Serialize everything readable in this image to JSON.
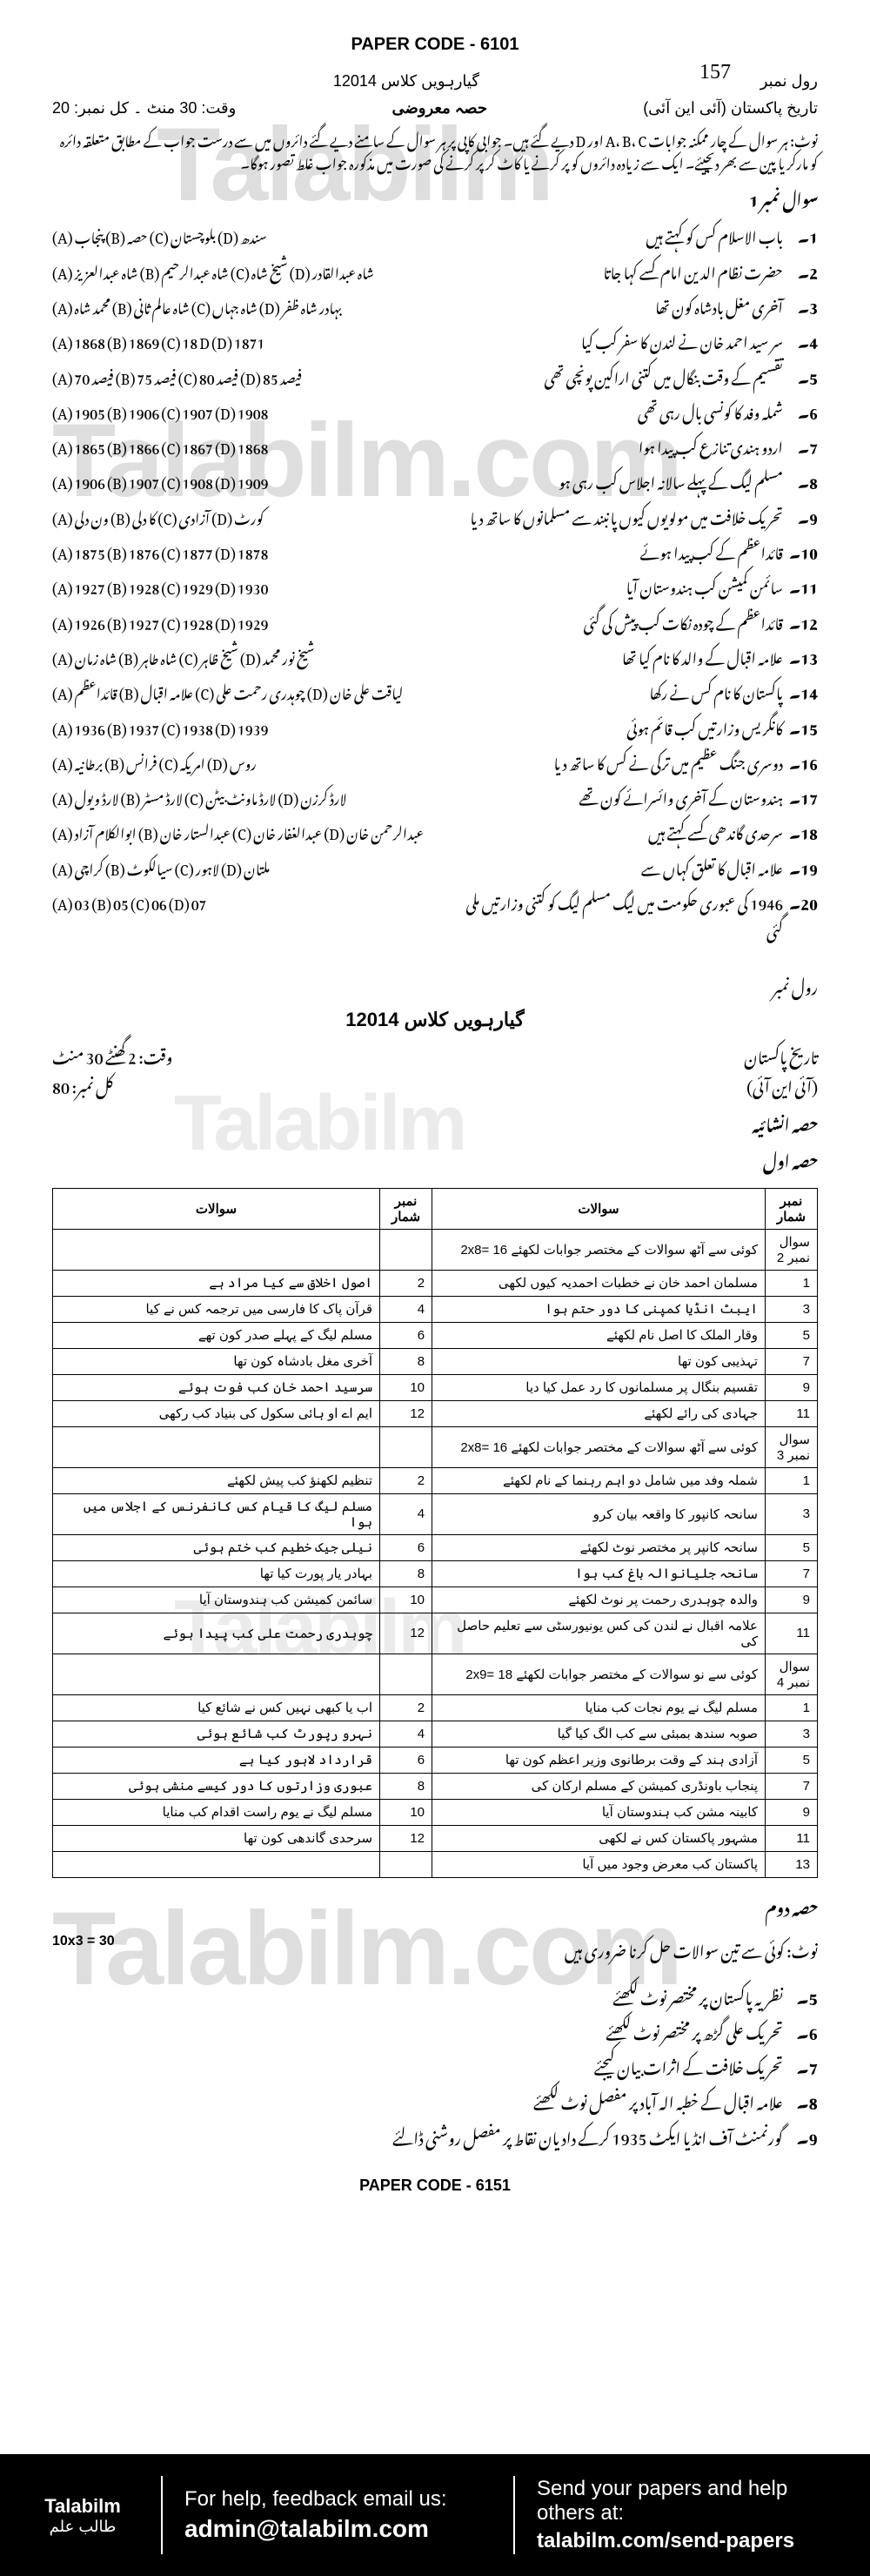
{
  "page_number": "157",
  "paper_code_top": "PAPER CODE - 6101",
  "exam_year": "گیارہویں کلاس 12014",
  "subject": "تاریخ پاکستان (آئی این آئی)",
  "roll_label": "رول نمبر",
  "time_marks_top": "وقت: 30 منٹ ۔ کل نمبر: 20",
  "section_obj": "حصہ معروضی",
  "note_text": "نوٹ: ہر سوال کے چار ممکنہ جوابات A، B، C اور D دیے گئے ہیں۔ جوابی کاپی پر ہر سوال کے سامنے دیے گئے دائروں میں سے درست جواب کے مطابق متعلقہ دائرہ کو مارکر یا پین سے بھر دیجیئے۔ ایک سے زیادہ دائروں کو پر کرنے یا کاٹ کر پر کرنے کی صورت میں مذکورہ جواب غلط تصور ہوگا۔",
  "q_label": "سوال نمبر 1",
  "mcqs": [
    {
      "n": "1",
      "q": "باب الاسلام کس کو کہتے ہیں",
      "o": "(A) پنجاب (B) حصہ (C) بلوچستان (D) سندھ"
    },
    {
      "n": "2",
      "q": "حضرت نظام الدین امام کسے کہا جاتا",
      "o": "(A) شاہ عبدالعزیز (B) شاہ عبدالرحیم (C) شیخ شاہ (D) شاہ عبدالقادر"
    },
    {
      "n": "3",
      "q": "آخری مغل بادشاہ کون تھا",
      "o": "(A) محمد شاہ (B) شاہ عالم ثانی (C) شاہ جہاں (D) بہادر شاہ ظفر"
    },
    {
      "n": "4",
      "q": "سر سید احمد خان نے لندن کا سفر کب کیا",
      "o": "(A) 1868 (B) 1869 (C) 18 D (D) 1871"
    },
    {
      "n": "5",
      "q": "تقسیم کے وقت بنگال میں کتنی اراکین پونچی تھی",
      "o": "(A) 70 فیصد (B) 75 فیصد (C) 80 فیصد (D) 85 فیصد"
    },
    {
      "n": "6",
      "q": "شملہ وفد کا کونسی بال رہی تھی",
      "o": "(A) 1905 (B) 1906 (C) 1907 (D) 1908"
    },
    {
      "n": "7",
      "q": "اردو ہندی تنازع کب پیدا ہوا",
      "o": "(A) 1865 (B) 1866 (C) 1867 (D) 1868"
    },
    {
      "n": "8",
      "q": "مسلم لیگ کے پہلے سالانہ اجلاس کب رہی ہو",
      "o": "(A) 1906 (B) 1907 (C) 1908 (D) 1909"
    },
    {
      "n": "9",
      "q": "تحریک خلافت میں مولویوں کیوں پانبند سے مسلمانوں کا ساتھ دیا",
      "o": "(A) ون دلی (B) کا دلی (C) آزادی (D) کورٹ"
    },
    {
      "n": "10",
      "q": "قائداعظم کے کب پیدا ہوئے",
      "o": "(A) 1875 (B) 1876 (C) 1877 (D) 1878"
    },
    {
      "n": "11",
      "q": "سائمن کمیشن کب ہندوستان آیا",
      "o": "(A) 1927 (B) 1928 (C) 1929 (D) 1930"
    },
    {
      "n": "12",
      "q": "قائداعظم کے چودہ نکات کب پیش کی گئی",
      "o": "(A) 1926 (B) 1927 (C) 1928 (D) 1929"
    },
    {
      "n": "13",
      "q": "علامہ اقبال کے والد کا نام کیا تھا",
      "o": "(A) شاہ زمان (B) شاہ طاہر (C) شیخ ظاہر (D) شیخ نور محمد"
    },
    {
      "n": "14",
      "q": "پاکستان کا نام کس نے رکھا",
      "o": "(A) قائداعظم (B) علامہ اقبال (C) چوہدری رحمت علی (D) لیاقت علی خان"
    },
    {
      "n": "15",
      "q": "کانگریس وزارتیں کب قائم ہوئی",
      "o": "(A) 1936 (B) 1937 (C) 1938 (D) 1939"
    },
    {
      "n": "16",
      "q": "دوسری جنگ عظیم میں ترکی نے کس کا ساتھ دیا",
      "o": "(A) برطانیہ (B) فرانس (C) امریکہ (D) روس"
    },
    {
      "n": "17",
      "q": "ہندوستان کے آخری وائسرائے کون تھے",
      "o": "(A) لارڈ ویول (B) لارڈ مسٹر (C) لارڈ ماونٹ بیٹن (D) لارڈ کرزن"
    },
    {
      "n": "18",
      "q": "سرحدی گاندھی کسے کہتے ہیں",
      "o": "(A) ابوالکلام آزاد (B) عبدالستار خان (C) عبدالغفار خان (D) عبدالرحمن خان"
    },
    {
      "n": "19",
      "q": "علامہ اقبال کا تعلق کہاں سے",
      "o": "(A) کراچی (B) سیالکوٹ (C) لاہور (D) ملتان"
    },
    {
      "n": "20",
      "q": "1946 کی عبوری حکومت میں لیگ مسلم لیگ کو کتنی وزارتیں ملی گئی",
      "o": "(A) 03 (B) 05 (C) 06 (D) 07"
    }
  ],
  "part2_header": "گیارہویں کلاس 12014",
  "part2_subject": "تاریخ پاکستان",
  "part2_annual": "(آئی این آئی)",
  "part2_time": "وقت: 2 گھنٹے 30 منٹ",
  "part2_marks": "کل نمبر: 80",
  "section_subj": "حصہ انشائیہ",
  "hissa_awal": "حصہ اول",
  "table_headers": [
    "نمبر شمار",
    "سوالات",
    "نمبر شمار",
    "سوالات"
  ],
  "table_rows": [
    {
      "n1": "سوال نمبر 2",
      "q1": "کوئی سے آٹھ سوالات کے مختصر جوابات لکھئے 16 =2x8",
      "n2": "",
      "q2": ""
    },
    {
      "n1": "1",
      "q1": "مسلمان احمد خان نے خطبات احمدیہ کیوں لکھی",
      "n2": "2",
      "q2": "اصول اخلاق سے کیا مراد ہے"
    },
    {
      "n1": "3",
      "q1": "ایبٹ انڈیا کمپنی کا دور حتم ہوا",
      "n2": "4",
      "q2": "قرآن پاک کا فارسی میں ترجمہ کس نے کیا"
    },
    {
      "n1": "5",
      "q1": "وقار الملک کا اصل نام لکھئے",
      "n2": "6",
      "q2": "مسلم لیگ کے پہلے صدر کون تھے"
    },
    {
      "n1": "7",
      "q1": "تہذیبی کون تھا",
      "n2": "8",
      "q2": "آخری مغل بادشاہ کون تھا"
    },
    {
      "n1": "9",
      "q1": "تقسیم بنگال پر مسلمانوں کا رد عمل کیا دیا",
      "n2": "10",
      "q2": "سرسید احمد خان کب فوت ہوئے"
    },
    {
      "n1": "11",
      "q1": "جہادی کی رائے لکھئے",
      "n2": "12",
      "q2": "ایم اے او ہائی سکول کی بنیاد کب رکھی"
    },
    {
      "n1": "سوال نمبر 3",
      "q1": "کوئی سے آٹھ سوالات کے مختصر جوابات لکھئے 16 =2x8",
      "n2": "",
      "q2": ""
    },
    {
      "n1": "1",
      "q1": "شملہ وفد میں شامل دو اہم رہنما کے نام لکھئے",
      "n2": "2",
      "q2": "تنظیم لکھنؤ کب پیش لکھئے"
    },
    {
      "n1": "3",
      "q1": "سانحہ کانپور کا واقعہ بیان کرو",
      "n2": "4",
      "q2": "مسلم لیگ کا قیام کس کانفرنس کے اجلاس میں ہوا"
    },
    {
      "n1": "5",
      "q1": "سانحہ کانپر پر مختصر نوٹ لکھئے",
      "n2": "6",
      "q2": "نیلی جیک خطیم کب ختم ہوئی"
    },
    {
      "n1": "7",
      "q1": "سانحہ جلیانوالہ باغ کب ہوا",
      "n2": "8",
      "q2": "بہادر یار پورت کیا تھا"
    },
    {
      "n1": "9",
      "q1": "والدہ چوہدری رحمت پر نوٹ لکھئے",
      "n2": "10",
      "q2": "سائمن کمیشن کب ہندوستان آیا"
    },
    {
      "n1": "11",
      "q1": "علامہ اقبال نے لندن کی کس یونیورسٹی سے تعلیم حاصل کی",
      "n2": "12",
      "q2": "چوہدری رحمت علی کب پیدا ہوئے"
    },
    {
      "n1": "سوال نمبر 4",
      "q1": "کوئی سے نو سوالات کے مختصر جوابات لکھئے 18 =2x9",
      "n2": "",
      "q2": ""
    },
    {
      "n1": "1",
      "q1": "مسلم لیگ نے یوم نجات کب منایا",
      "n2": "2",
      "q2": "اب یا کبھی نہیں کس نے شائع کیا"
    },
    {
      "n1": "3",
      "q1": "صوبہ سندھ بمبئی سے کب الگ کیا گیا",
      "n2": "4",
      "q2": "نہرو رپورٹ کب شائع ہوئی"
    },
    {
      "n1": "5",
      "q1": "آزادی ہند کے وقت برطانوی وزیر اعظم کون تھا",
      "n2": "6",
      "q2": "قرارداد لاہور کیا ہے"
    },
    {
      "n1": "7",
      "q1": "پنجاب باونڈری کمیشن کے مسلم ارکان کی",
      "n2": "8",
      "q2": "عبوری وزارتوں کا دور کیسے منشی ہوئی"
    },
    {
      "n1": "9",
      "q1": "کابینہ مشن کب ہندوستان آیا",
      "n2": "10",
      "q2": "مسلم لیگ نے یوم راست اقدام کب منایا"
    },
    {
      "n1": "11",
      "q1": "مشہور پاکستان کس نے لکھی",
      "n2": "12",
      "q2": "سرحدی گاندھی کون تھا"
    },
    {
      "n1": "13",
      "q1": "پاکستان کب معرض وجود میں آیا",
      "n2": "",
      "q2": ""
    }
  ],
  "hissa_dom": "حصہ دوم",
  "essay_note": "نوٹ: کوئی سے تین سوالات حل کرنا ضروری ہیں",
  "essay_marks": "10x3 = 30",
  "essays": [
    {
      "n": "5",
      "q": "نظریہ پاکستان پر مختصر نوٹ لکھئے"
    },
    {
      "n": "6",
      "q": "تحریک علی گڑھ پر مختصر نوٹ لکھئے"
    },
    {
      "n": "7",
      "q": "تحریک خلافت کے اثرات بیان کیجئے"
    },
    {
      "n": "8",
      "q": "علامہ اقبال کے خطبہ الہ آباد پر مفصل نوٹ لکھئے"
    },
    {
      "n": "9",
      "q": "گورنمنٹ آف انڈیا ایکٹ 1935 کرکے دادیان نقاط پر مفصل روشنی ڈالئے"
    }
  ],
  "paper_code_bottom": "PAPER CODE - 6151",
  "watermark_text": "Talabilm",
  "watermark_text2": "Talabilm.com",
  "footer": {
    "logo": "Talabilm",
    "logo_urdu": "طالب علم",
    "help_title": "For help, feedback email us:",
    "help_email": "admin@talabilm.com",
    "send_title": "Send your papers and help others at:",
    "send_link": "talabilm.com/send-papers"
  }
}
